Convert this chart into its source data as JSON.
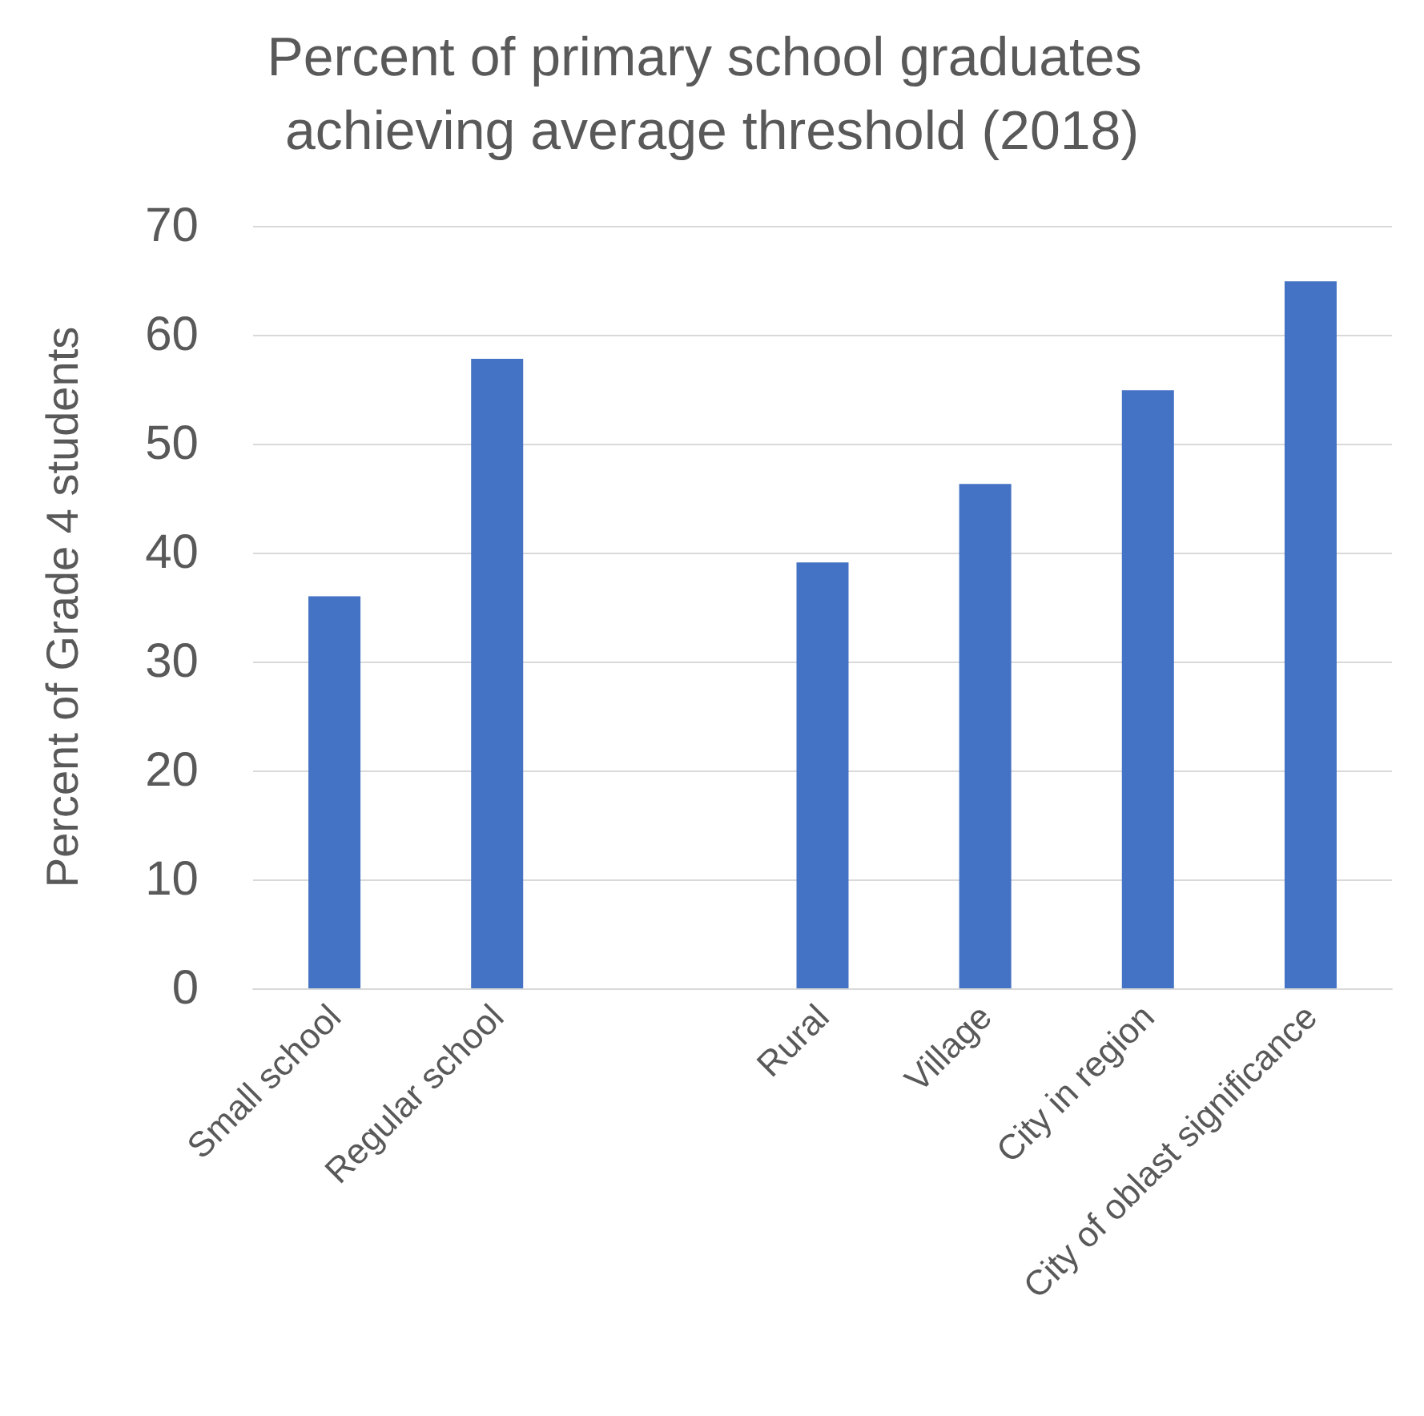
{
  "chart_data": {
    "type": "bar",
    "title": "Percent of primary school graduates achieving average threshold (2018)",
    "ylabel": "Percent of Grade 4 students",
    "categories": [
      "Small school",
      "Regular school",
      null,
      "Rural",
      "Village",
      "City in region",
      "City of oblast significance"
    ],
    "values": [
      36,
      57.8,
      null,
      39.1,
      46.3,
      54.9,
      64.9
    ],
    "color": "#4472c4",
    "ylim": [
      0,
      70
    ],
    "yticks": [
      0,
      10,
      20,
      30,
      40,
      50,
      60,
      70
    ],
    "grid": "y"
  }
}
